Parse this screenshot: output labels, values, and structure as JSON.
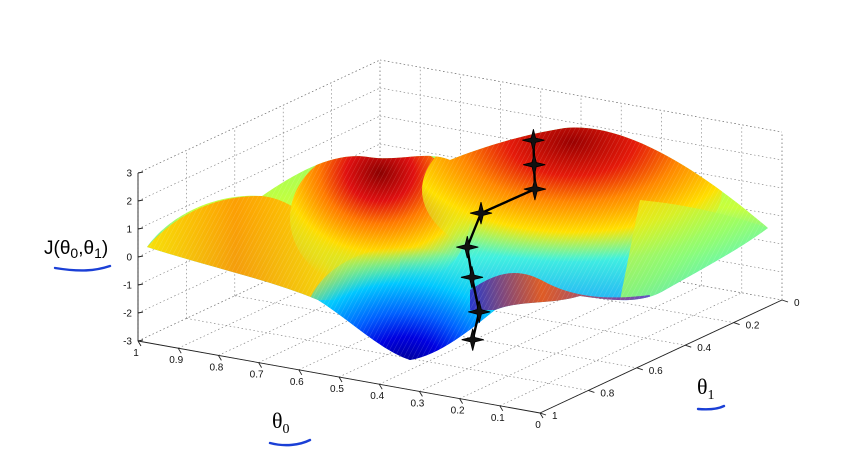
{
  "chart_data": {
    "type": "surface",
    "title": "",
    "xlabel": "θ0",
    "ylabel": "θ1",
    "zlabel": "J(θ0,θ1)",
    "axes": {
      "theta0": {
        "range": [
          0,
          1
        ],
        "ticks": [
          "1",
          "0.9",
          "0.8",
          "0.7",
          "0.6",
          "0.5",
          "0.4",
          "0.3",
          "0.2",
          "0.1",
          "0"
        ]
      },
      "theta1": {
        "range": [
          0,
          1
        ],
        "ticks": [
          "0",
          "0.2",
          "0.4",
          "0.6",
          "0.8",
          "1"
        ]
      },
      "J": {
        "range": [
          -3,
          3
        ],
        "ticks": [
          "3",
          "2",
          "1",
          "0",
          "-1",
          "-2",
          "-3"
        ]
      }
    },
    "grid": true,
    "colormap": "jet",
    "surface_extent": {
      "theta0": [
        0,
        1
      ],
      "theta1": [
        0,
        1
      ],
      "J": [
        -3,
        3
      ]
    },
    "descent_path": {
      "marker": "star",
      "points": [
        {
          "theta0": 0.48,
          "theta1": 0.23,
          "J": 2.4
        },
        {
          "theta0": 0.46,
          "theta1": 0.26,
          "J": 1.7
        },
        {
          "theta0": 0.44,
          "theta1": 0.29,
          "J": 1.0
        },
        {
          "theta0": 0.52,
          "theta1": 0.38,
          "J": 0.3
        },
        {
          "theta0": 0.5,
          "theta1": 0.47,
          "J": -0.5
        },
        {
          "theta0": 0.44,
          "theta1": 0.55,
          "J": -1.1
        },
        {
          "theta0": 0.38,
          "theta1": 0.62,
          "J": -1.9
        },
        {
          "theta0": 0.36,
          "theta1": 0.68,
          "J": -2.6
        }
      ]
    }
  }
}
